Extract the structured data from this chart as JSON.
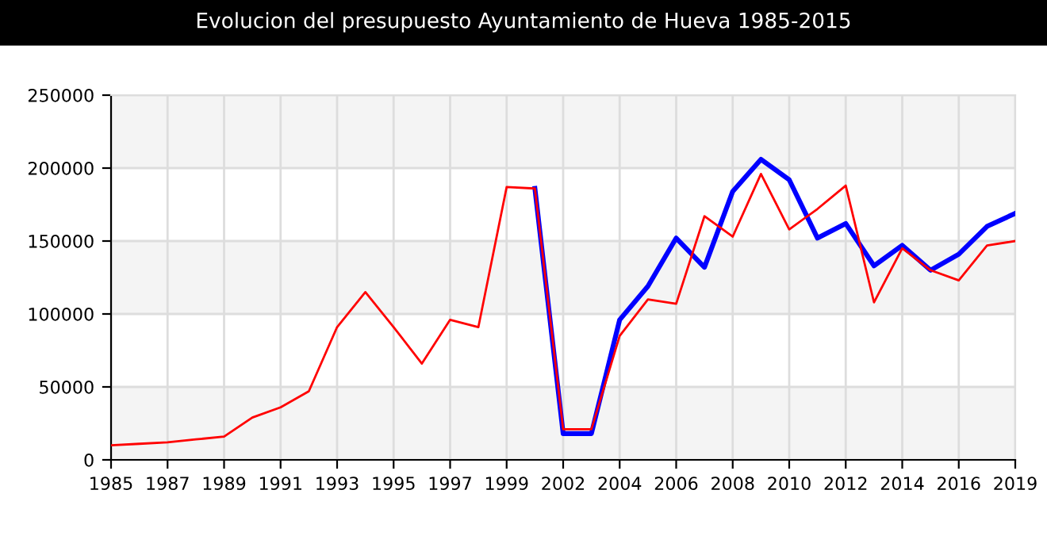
{
  "chart_data": {
    "type": "line",
    "title": "Evolucion del presupuesto Ayuntamiento de Hueva 1985-2015",
    "categories": [
      "1985",
      null,
      "1987",
      null,
      "1989",
      null,
      "1991",
      null,
      "1993",
      null,
      "1995",
      null,
      "1997",
      null,
      "1999",
      null,
      "2002",
      null,
      "2004",
      null,
      "2006",
      null,
      "2008",
      null,
      "2010",
      null,
      "2012",
      null,
      "2014",
      null,
      "2016",
      null,
      "2019"
    ],
    "series": [
      {
        "color": "#0000ff",
        "values": [
          null,
          null,
          null,
          null,
          null,
          null,
          null,
          null,
          null,
          null,
          null,
          null,
          null,
          null,
          null,
          186000,
          18000,
          18000,
          96000,
          119000,
          152000,
          132000,
          184000,
          206000,
          192000,
          152000,
          162000,
          133000,
          147000,
          130000,
          141000,
          160000,
          169000
        ]
      },
      {
        "color": "#ff0000",
        "values": [
          10000,
          11000,
          12000,
          14000,
          16000,
          29000,
          36000,
          47000,
          91000,
          115000,
          91000,
          66000,
          96000,
          91000,
          187000,
          186000,
          21000,
          21000,
          85000,
          110000,
          107000,
          167000,
          153000,
          196000,
          158000,
          172000,
          188000,
          108000,
          145000,
          130000,
          123000,
          147000,
          150000
        ]
      }
    ],
    "ylim": [
      0,
      250000
    ],
    "yticks": [
      0,
      50000,
      100000,
      150000,
      200000,
      250000
    ],
    "bands": [
      {
        "axis": "y",
        "from": 0,
        "to": 50000,
        "color": "#f4f4f4"
      },
      {
        "axis": "y",
        "from": 100000,
        "to": 150000,
        "color": "#f4f4f4"
      },
      {
        "axis": "y",
        "from": 200000,
        "to": 250000,
        "color": "#f4f4f4"
      }
    ],
    "grid": true,
    "marker": "none",
    "line_style": "solid"
  }
}
